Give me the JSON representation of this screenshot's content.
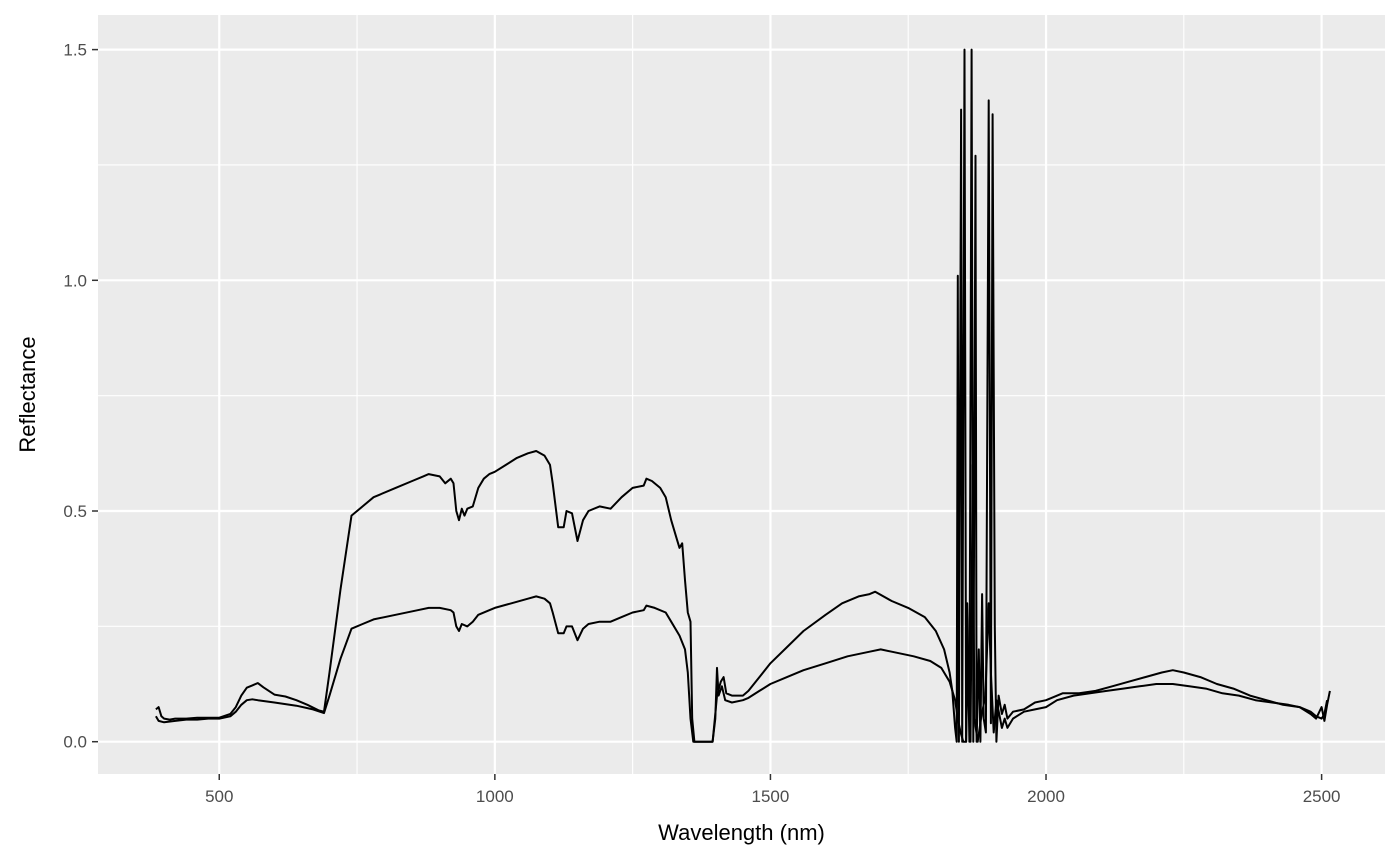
{
  "chart_data": {
    "type": "line",
    "title": "",
    "xlabel": "Wavelength (nm)",
    "ylabel": "Reflectance",
    "xlim": [
      280,
      2615
    ],
    "ylim": [
      -0.07,
      1.575
    ],
    "x_ticks": [
      500,
      1000,
      1500,
      2000,
      2500
    ],
    "x_tick_labels": [
      "500",
      "1000",
      "1500",
      "2000",
      "2500"
    ],
    "y_ticks": [
      0.0,
      0.5,
      1.0,
      1.5
    ],
    "y_tick_labels": [
      "0.0",
      "0.5",
      "1.0",
      "1.5"
    ],
    "grid": true,
    "legend": "none",
    "colors": {
      "panel": "#ebebeb",
      "grid": "#ffffff",
      "line": "#000000",
      "tick_text": "#4d4d4d"
    },
    "series": [
      {
        "values": [
          [
            385,
            0.07
          ],
          [
            390,
            0.075
          ],
          [
            395,
            0.055
          ],
          [
            400,
            0.05
          ],
          [
            410,
            0.048
          ],
          [
            420,
            0.05
          ],
          [
            440,
            0.05
          ],
          [
            460,
            0.052
          ],
          [
            480,
            0.052
          ],
          [
            500,
            0.052
          ],
          [
            520,
            0.06
          ],
          [
            530,
            0.075
          ],
          [
            540,
            0.1
          ],
          [
            550,
            0.117
          ],
          [
            560,
            0.122
          ],
          [
            570,
            0.127
          ],
          [
            580,
            0.118
          ],
          [
            600,
            0.102
          ],
          [
            620,
            0.098
          ],
          [
            640,
            0.09
          ],
          [
            660,
            0.08
          ],
          [
            680,
            0.068
          ],
          [
            690,
            0.065
          ],
          [
            700,
            0.15
          ],
          [
            720,
            0.33
          ],
          [
            740,
            0.49
          ],
          [
            760,
            0.51
          ],
          [
            780,
            0.53
          ],
          [
            790,
            0.535
          ],
          [
            820,
            0.55
          ],
          [
            850,
            0.565
          ],
          [
            870,
            0.575
          ],
          [
            880,
            0.58
          ],
          [
            900,
            0.575
          ],
          [
            910,
            0.56
          ],
          [
            920,
            0.57
          ],
          [
            925,
            0.56
          ],
          [
            930,
            0.5
          ],
          [
            935,
            0.48
          ],
          [
            940,
            0.505
          ],
          [
            945,
            0.49
          ],
          [
            950,
            0.505
          ],
          [
            960,
            0.51
          ],
          [
            970,
            0.55
          ],
          [
            980,
            0.57
          ],
          [
            990,
            0.58
          ],
          [
            1000,
            0.585
          ],
          [
            1020,
            0.6
          ],
          [
            1040,
            0.615
          ],
          [
            1060,
            0.625
          ],
          [
            1075,
            0.63
          ],
          [
            1090,
            0.62
          ],
          [
            1100,
            0.6
          ],
          [
            1105,
            0.56
          ],
          [
            1115,
            0.465
          ],
          [
            1125,
            0.465
          ],
          [
            1130,
            0.5
          ],
          [
            1140,
            0.495
          ],
          [
            1150,
            0.435
          ],
          [
            1160,
            0.48
          ],
          [
            1170,
            0.5
          ],
          [
            1190,
            0.51
          ],
          [
            1210,
            0.505
          ],
          [
            1230,
            0.53
          ],
          [
            1250,
            0.55
          ],
          [
            1270,
            0.555
          ],
          [
            1275,
            0.57
          ],
          [
            1285,
            0.565
          ],
          [
            1300,
            0.55
          ],
          [
            1310,
            0.53
          ],
          [
            1320,
            0.48
          ],
          [
            1330,
            0.44
          ],
          [
            1335,
            0.42
          ],
          [
            1340,
            0.43
          ],
          [
            1345,
            0.35
          ],
          [
            1350,
            0.28
          ],
          [
            1355,
            0.26
          ],
          [
            1358,
            0.05
          ],
          [
            1362,
            0.0
          ],
          [
            1395,
            0.0
          ],
          [
            1400,
            0.06
          ],
          [
            1403,
            0.1
          ],
          [
            1410,
            0.13
          ],
          [
            1415,
            0.14
          ],
          [
            1420,
            0.105
          ],
          [
            1430,
            0.1
          ],
          [
            1450,
            0.1
          ],
          [
            1460,
            0.11
          ],
          [
            1480,
            0.14
          ],
          [
            1500,
            0.17
          ],
          [
            1530,
            0.205
          ],
          [
            1560,
            0.24
          ],
          [
            1600,
            0.275
          ],
          [
            1630,
            0.3
          ],
          [
            1660,
            0.315
          ],
          [
            1680,
            0.32
          ],
          [
            1690,
            0.325
          ],
          [
            1720,
            0.305
          ],
          [
            1750,
            0.29
          ],
          [
            1780,
            0.27
          ],
          [
            1800,
            0.24
          ],
          [
            1815,
            0.2
          ],
          [
            1825,
            0.15
          ],
          [
            1830,
            0.11
          ],
          [
            1835,
            0.03
          ],
          [
            1838,
            0.0
          ],
          [
            1840,
            1.01
          ],
          [
            1842,
            0.0
          ],
          [
            1846,
            1.37
          ],
          [
            1848,
            0.0
          ],
          [
            1852,
            1.5
          ],
          [
            1855,
            0.0
          ],
          [
            1858,
            0.2
          ],
          [
            1861,
            0.0
          ],
          [
            1865,
            1.5
          ],
          [
            1868,
            0.0
          ],
          [
            1872,
            1.27
          ],
          [
            1874,
            0.0
          ],
          [
            1878,
            0.2
          ],
          [
            1881,
            0.0
          ],
          [
            1884,
            0.32
          ],
          [
            1887,
            0.05
          ],
          [
            1891,
            0.02
          ],
          [
            1896,
            1.39
          ],
          [
            1900,
            0.04
          ],
          [
            1903,
            1.36
          ],
          [
            1907,
            0.25
          ],
          [
            1910,
            0.0
          ],
          [
            1914,
            0.1
          ],
          [
            1920,
            0.06
          ],
          [
            1925,
            0.08
          ],
          [
            1930,
            0.05
          ],
          [
            1940,
            0.065
          ],
          [
            1960,
            0.07
          ],
          [
            1980,
            0.085
          ],
          [
            2000,
            0.09
          ],
          [
            2010,
            0.095
          ],
          [
            2030,
            0.105
          ],
          [
            2060,
            0.105
          ],
          [
            2090,
            0.11
          ],
          [
            2120,
            0.12
          ],
          [
            2150,
            0.13
          ],
          [
            2180,
            0.14
          ],
          [
            2210,
            0.15
          ],
          [
            2230,
            0.155
          ],
          [
            2250,
            0.15
          ],
          [
            2280,
            0.14
          ],
          [
            2310,
            0.125
          ],
          [
            2340,
            0.115
          ],
          [
            2370,
            0.1
          ],
          [
            2400,
            0.09
          ],
          [
            2430,
            0.08
          ],
          [
            2460,
            0.075
          ],
          [
            2480,
            0.06
          ],
          [
            2490,
            0.05
          ],
          [
            2500,
            0.075
          ],
          [
            2505,
            0.045
          ],
          [
            2510,
            0.08
          ],
          [
            2515,
            0.11
          ]
        ]
      },
      {
        "values": [
          [
            385,
            0.055
          ],
          [
            390,
            0.045
          ],
          [
            400,
            0.042
          ],
          [
            420,
            0.045
          ],
          [
            440,
            0.048
          ],
          [
            460,
            0.048
          ],
          [
            480,
            0.05
          ],
          [
            500,
            0.05
          ],
          [
            520,
            0.055
          ],
          [
            530,
            0.065
          ],
          [
            540,
            0.08
          ],
          [
            550,
            0.09
          ],
          [
            560,
            0.092
          ],
          [
            570,
            0.09
          ],
          [
            600,
            0.085
          ],
          [
            640,
            0.078
          ],
          [
            670,
            0.07
          ],
          [
            690,
            0.062
          ],
          [
            700,
            0.1
          ],
          [
            720,
            0.18
          ],
          [
            740,
            0.245
          ],
          [
            760,
            0.255
          ],
          [
            780,
            0.265
          ],
          [
            820,
            0.275
          ],
          [
            860,
            0.285
          ],
          [
            880,
            0.29
          ],
          [
            900,
            0.29
          ],
          [
            920,
            0.285
          ],
          [
            925,
            0.28
          ],
          [
            930,
            0.25
          ],
          [
            935,
            0.24
          ],
          [
            940,
            0.255
          ],
          [
            950,
            0.25
          ],
          [
            960,
            0.26
          ],
          [
            970,
            0.275
          ],
          [
            990,
            0.285
          ],
          [
            1000,
            0.29
          ],
          [
            1030,
            0.3
          ],
          [
            1060,
            0.31
          ],
          [
            1075,
            0.315
          ],
          [
            1090,
            0.31
          ],
          [
            1100,
            0.3
          ],
          [
            1105,
            0.28
          ],
          [
            1115,
            0.235
          ],
          [
            1125,
            0.235
          ],
          [
            1130,
            0.25
          ],
          [
            1140,
            0.25
          ],
          [
            1150,
            0.22
          ],
          [
            1160,
            0.245
          ],
          [
            1170,
            0.255
          ],
          [
            1190,
            0.26
          ],
          [
            1210,
            0.26
          ],
          [
            1230,
            0.27
          ],
          [
            1250,
            0.28
          ],
          [
            1270,
            0.285
          ],
          [
            1275,
            0.295
          ],
          [
            1290,
            0.29
          ],
          [
            1310,
            0.28
          ],
          [
            1320,
            0.26
          ],
          [
            1335,
            0.23
          ],
          [
            1345,
            0.2
          ],
          [
            1350,
            0.15
          ],
          [
            1355,
            0.05
          ],
          [
            1360,
            0.0
          ],
          [
            1395,
            0.0
          ],
          [
            1400,
            0.05
          ],
          [
            1403,
            0.16
          ],
          [
            1406,
            0.1
          ],
          [
            1412,
            0.12
          ],
          [
            1418,
            0.09
          ],
          [
            1430,
            0.085
          ],
          [
            1450,
            0.09
          ],
          [
            1460,
            0.095
          ],
          [
            1480,
            0.11
          ],
          [
            1500,
            0.125
          ],
          [
            1530,
            0.14
          ],
          [
            1560,
            0.155
          ],
          [
            1600,
            0.17
          ],
          [
            1640,
            0.185
          ],
          [
            1680,
            0.195
          ],
          [
            1700,
            0.2
          ],
          [
            1720,
            0.195
          ],
          [
            1760,
            0.185
          ],
          [
            1790,
            0.175
          ],
          [
            1810,
            0.16
          ],
          [
            1825,
            0.13
          ],
          [
            1835,
            0.09
          ],
          [
            1840,
            0.05
          ],
          [
            1845,
            0.02
          ],
          [
            1850,
            0.0
          ],
          [
            1855,
            0.0
          ],
          [
            1857,
            0.3
          ],
          [
            1860,
            0.1
          ],
          [
            1863,
            0.0
          ],
          [
            1867,
            0.6
          ],
          [
            1870,
            0.05
          ],
          [
            1876,
            0.0
          ],
          [
            1882,
            0.05
          ],
          [
            1890,
            0.1
          ],
          [
            1896,
            0.3
          ],
          [
            1900,
            0.15
          ],
          [
            1905,
            0.02
          ],
          [
            1910,
            0.09
          ],
          [
            1915,
            0.06
          ],
          [
            1920,
            0.03
          ],
          [
            1925,
            0.05
          ],
          [
            1930,
            0.03
          ],
          [
            1940,
            0.05
          ],
          [
            1960,
            0.065
          ],
          [
            1980,
            0.07
          ],
          [
            2000,
            0.075
          ],
          [
            2020,
            0.09
          ],
          [
            2050,
            0.1
          ],
          [
            2080,
            0.105
          ],
          [
            2110,
            0.11
          ],
          [
            2140,
            0.115
          ],
          [
            2170,
            0.12
          ],
          [
            2200,
            0.125
          ],
          [
            2230,
            0.125
          ],
          [
            2260,
            0.12
          ],
          [
            2290,
            0.115
          ],
          [
            2320,
            0.105
          ],
          [
            2350,
            0.1
          ],
          [
            2380,
            0.09
          ],
          [
            2410,
            0.085
          ],
          [
            2440,
            0.08
          ],
          [
            2460,
            0.075
          ],
          [
            2480,
            0.065
          ],
          [
            2490,
            0.055
          ],
          [
            2500,
            0.05
          ],
          [
            2505,
            0.06
          ],
          [
            2510,
            0.09
          ]
        ]
      }
    ]
  }
}
